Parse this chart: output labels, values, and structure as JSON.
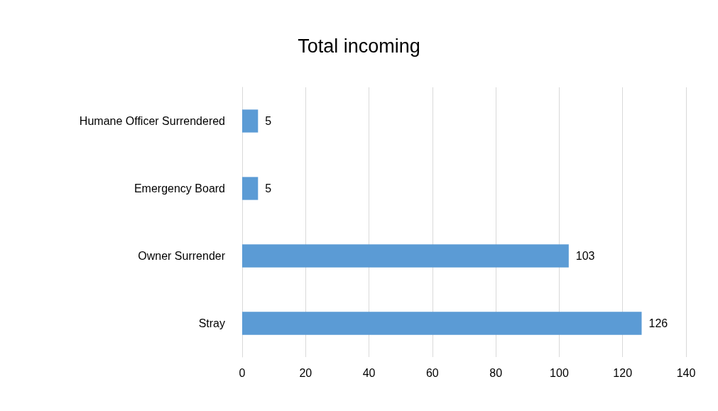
{
  "chart_data": {
    "type": "bar",
    "title": "Total incoming",
    "orientation": "horizontal",
    "categories": [
      "Humane Officer Surrendered",
      "Emergency Board",
      "Owner Surrender",
      "Stray"
    ],
    "values": [
      5,
      5,
      103,
      126
    ],
    "color": "#5b9bd5",
    "data_labels": true,
    "xlim": [
      0,
      140
    ],
    "xticks": [
      0,
      20,
      40,
      60,
      80,
      100,
      120,
      140
    ],
    "grid": "x"
  }
}
